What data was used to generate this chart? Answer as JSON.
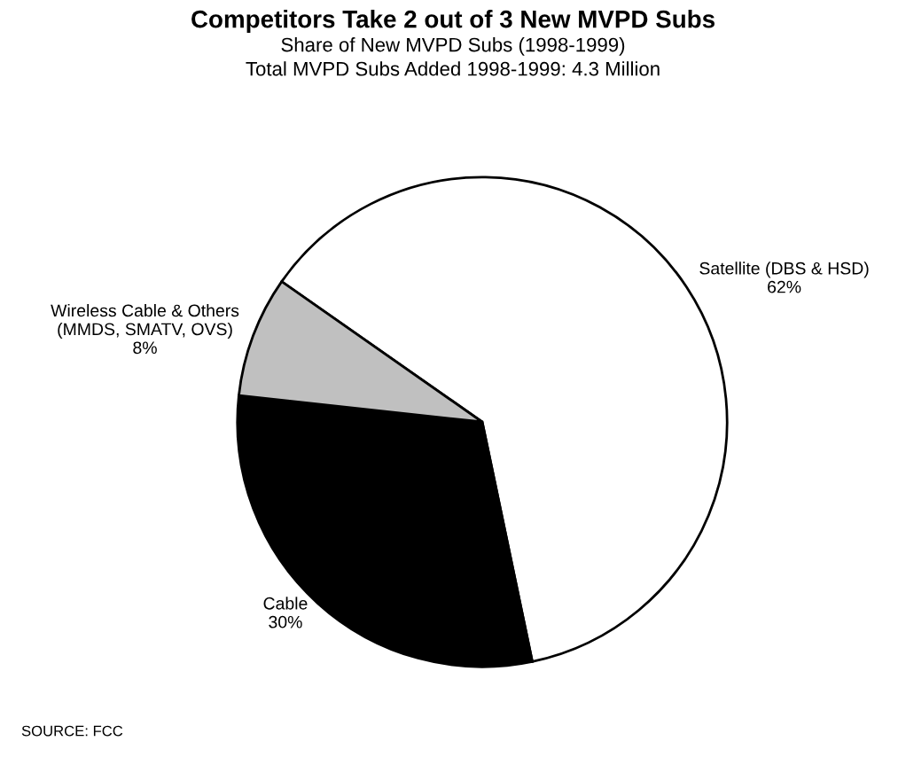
{
  "chart_data": {
    "type": "pie",
    "title": "Competitors Take 2 out of 3 New MVPD Subs",
    "subtitle": "Share of New MVPD Subs (1998-1999)\nTotal MVPD Subs Added 1998-1999: 4.3 Million",
    "categories": [
      "Satellite (DBS & HSD)",
      "Cable",
      "Wireless Cable & Others\n(MMDS, SMATV, OVS)"
    ],
    "values": [
      62,
      30,
      8
    ],
    "value_labels": [
      "62%",
      "30%",
      "8%"
    ],
    "colors": [
      "#ffffff",
      "#000000",
      "#c0c0c0"
    ],
    "annotations": [
      "SOURCE: FCC"
    ]
  }
}
